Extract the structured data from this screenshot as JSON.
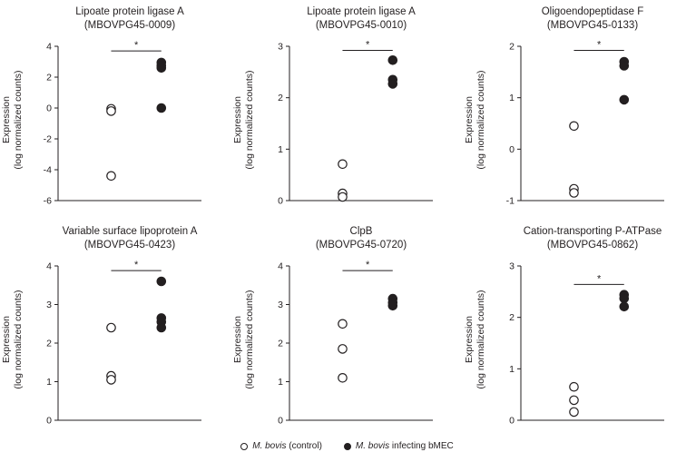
{
  "figure": {
    "legend": {
      "items": [
        {
          "marker": "open",
          "species": "M. bovis",
          "label_rest": " (control)"
        },
        {
          "marker": "filled",
          "species": "M. bovis",
          "label_rest": " infecting bMEC"
        }
      ]
    },
    "colors": {
      "ink": "#231f20",
      "background": "#ffffff"
    }
  },
  "chart_data": [
    {
      "type": "scatter",
      "title": "Lipoate protein ligase A",
      "subtitle": "(MBOVPG45-0009)",
      "ylabel": "Expression",
      "ylabel2": "(log normalized counts)",
      "ylim": [
        -6,
        4
      ],
      "yticks": [
        -6,
        -4,
        -2,
        0,
        2,
        4
      ],
      "significance": "*",
      "sig_y": 3.7,
      "series": [
        {
          "name": "M. bovis (control)",
          "marker": "open",
          "values": [
            -0.05,
            -0.2,
            -4.4
          ]
        },
        {
          "name": "M. bovis infecting bMEC",
          "marker": "filled",
          "values": [
            2.95,
            2.75,
            2.6,
            0.0
          ]
        }
      ]
    },
    {
      "type": "scatter",
      "title": "Lipoate protein ligase A",
      "subtitle": "(MBOVPG45-0010)",
      "ylabel": "Expression",
      "ylabel2": "(log normalized counts)",
      "ylim": [
        0,
        3
      ],
      "yticks": [
        0,
        1,
        2,
        3
      ],
      "significance": "*",
      "sig_y": 2.92,
      "series": [
        {
          "name": "M. bovis (control)",
          "marker": "open",
          "values": [
            0.71,
            0.14,
            0.07
          ]
        },
        {
          "name": "M. bovis infecting bMEC",
          "marker": "filled",
          "values": [
            2.73,
            2.35,
            2.27
          ]
        }
      ]
    },
    {
      "type": "scatter",
      "title": "Oligoendopeptidase F",
      "subtitle": "(MBOVPG45-0133)",
      "ylabel": "Expression",
      "ylabel2": "(log normalized counts)",
      "ylim": [
        -1,
        2
      ],
      "yticks": [
        -1,
        0,
        1,
        2
      ],
      "significance": "*",
      "sig_y": 1.92,
      "series": [
        {
          "name": "M. bovis (control)",
          "marker": "open",
          "values": [
            0.45,
            -0.77,
            -0.85
          ]
        },
        {
          "name": "M. bovis infecting bMEC",
          "marker": "filled",
          "values": [
            1.7,
            1.62,
            0.96
          ]
        }
      ]
    },
    {
      "type": "scatter",
      "title": "Variable surface lipoprotein A",
      "subtitle": "(MBOVPG45-0423)",
      "ylabel": "Expression",
      "ylabel2": "(log normalized counts)",
      "ylim": [
        0,
        4
      ],
      "yticks": [
        0,
        1,
        2,
        3,
        4
      ],
      "significance": "*",
      "sig_y": 3.88,
      "series": [
        {
          "name": "M. bovis (control)",
          "marker": "open",
          "values": [
            2.4,
            1.15,
            1.05
          ]
        },
        {
          "name": "M. bovis infecting bMEC",
          "marker": "filled",
          "values": [
            3.6,
            2.65,
            2.55,
            2.4
          ]
        }
      ]
    },
    {
      "type": "scatter",
      "title": "ClpB",
      "subtitle": "(MBOVPG45-0720)",
      "ylabel": "Expression",
      "ylabel2": "(log normalized counts)",
      "ylim": [
        0,
        4
      ],
      "yticks": [
        0,
        1,
        2,
        3,
        4
      ],
      "significance": "*",
      "sig_y": 3.88,
      "series": [
        {
          "name": "M. bovis (control)",
          "marker": "open",
          "values": [
            2.5,
            1.85,
            1.1
          ]
        },
        {
          "name": "M. bovis infecting bMEC",
          "marker": "filled",
          "values": [
            3.15,
            3.05,
            2.97
          ]
        }
      ]
    },
    {
      "type": "scatter",
      "title": "Cation-transporting P-ATPase",
      "subtitle": "(MBOVPG45-0862)",
      "ylabel": "Expression",
      "ylabel2": "(log normalized counts)",
      "ylim": [
        0,
        3
      ],
      "yticks": [
        0,
        1,
        2,
        3
      ],
      "significance": "*",
      "sig_y": 2.64,
      "series": [
        {
          "name": "M. bovis (control)",
          "marker": "open",
          "values": [
            0.65,
            0.39,
            0.16
          ]
        },
        {
          "name": "M. bovis infecting bMEC",
          "marker": "filled",
          "values": [
            2.44,
            2.37,
            2.21
          ]
        }
      ]
    }
  ]
}
